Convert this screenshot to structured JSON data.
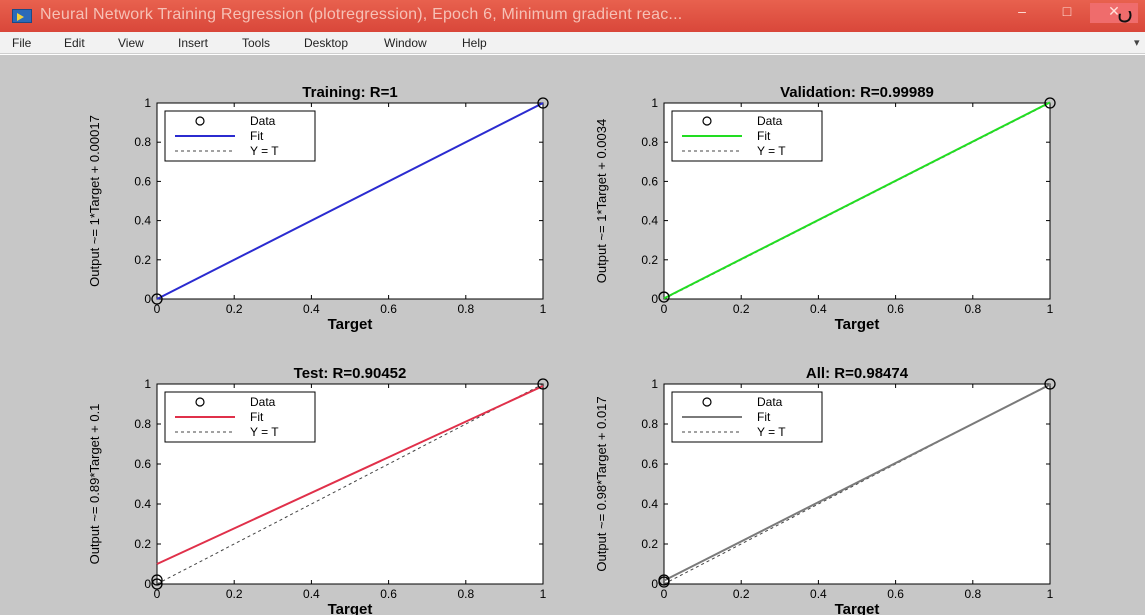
{
  "window": {
    "title": "Neural Network Training Regression (plotregression), Epoch 6, Minimum gradient reac...",
    "minimize": "–",
    "maximize": "□",
    "close": "✕",
    "corner_glyph": "ں"
  },
  "menu": {
    "items": [
      "File",
      "Edit",
      "View",
      "Insert",
      "Tools",
      "Desktop",
      "Window",
      "Help"
    ]
  },
  "colors": {
    "training_fit": "#2b2bd0",
    "validation_fit": "#22dd22",
    "test_fit": "#e0304a",
    "all_fit": "#7a7a7a"
  },
  "chart_data": [
    {
      "type": "scatter",
      "title": "Training: R=1",
      "xlabel": "Target",
      "ylabel": "Output ~= 1*Target + 0.00017",
      "xlim": [
        0,
        1
      ],
      "ylim": [
        0,
        1
      ],
      "x_ticks": [
        "0",
        "0.2",
        "0.4",
        "0.6",
        "0.8",
        "1"
      ],
      "y_ticks": [
        "0",
        "0.2",
        "0.4",
        "0.6",
        "0.8",
        "1"
      ],
      "legend": [
        "Data",
        "Fit",
        "Y = T"
      ],
      "legend_position": "top-left",
      "data_points": [
        [
          0,
          0
        ],
        [
          1,
          1
        ]
      ],
      "fit": {
        "slope": 1,
        "intercept": 0.00017
      },
      "fit_color": "#2b2bd0"
    },
    {
      "type": "scatter",
      "title": "Validation: R=0.99989",
      "xlabel": "Target",
      "ylabel": "Output ~= 1*Target + 0.0034",
      "xlim": [
        0,
        1
      ],
      "ylim": [
        0,
        1
      ],
      "x_ticks": [
        "0",
        "0.2",
        "0.4",
        "0.6",
        "0.8",
        "1"
      ],
      "y_ticks": [
        "0",
        "0.2",
        "0.4",
        "0.6",
        "0.8",
        "1"
      ],
      "legend": [
        "Data",
        "Fit",
        "Y = T"
      ],
      "legend_position": "top-left",
      "data_points": [
        [
          0,
          0.01
        ],
        [
          1,
          1
        ]
      ],
      "fit": {
        "slope": 1,
        "intercept": 0.0034
      },
      "fit_color": "#22dd22"
    },
    {
      "type": "scatter",
      "title": "Test: R=0.90452",
      "xlabel": "Target",
      "ylabel": "Output ~= 0.89*Target + 0.1",
      "xlim": [
        0,
        1
      ],
      "ylim": [
        0,
        1
      ],
      "x_ticks": [
        "0",
        "0.2",
        "0.4",
        "0.6",
        "0.8",
        "1"
      ],
      "y_ticks": [
        "0",
        "0.2",
        "0.4",
        "0.6",
        "0.8",
        "1"
      ],
      "legend": [
        "Data",
        "Fit",
        "Y = T"
      ],
      "legend_position": "top-left",
      "data_points": [
        [
          0,
          0.02
        ],
        [
          0,
          0
        ],
        [
          1,
          1
        ]
      ],
      "fit": {
        "slope": 0.89,
        "intercept": 0.1
      },
      "fit_color": "#e0304a"
    },
    {
      "type": "scatter",
      "title": "All: R=0.98474",
      "xlabel": "Target",
      "ylabel": "Output ~= 0.98*Target + 0.017",
      "xlim": [
        0,
        1
      ],
      "ylim": [
        0,
        1
      ],
      "x_ticks": [
        "0",
        "0.2",
        "0.4",
        "0.6",
        "0.8",
        "1"
      ],
      "y_ticks": [
        "0",
        "0.2",
        "0.4",
        "0.6",
        "0.8",
        "1"
      ],
      "legend": [
        "Data",
        "Fit",
        "Y = T"
      ],
      "legend_position": "top-left",
      "data_points": [
        [
          0,
          0.02
        ],
        [
          0,
          0.01
        ],
        [
          1,
          1
        ]
      ],
      "fit": {
        "slope": 0.98,
        "intercept": 0.017
      },
      "fit_color": "#7a7a7a"
    }
  ]
}
